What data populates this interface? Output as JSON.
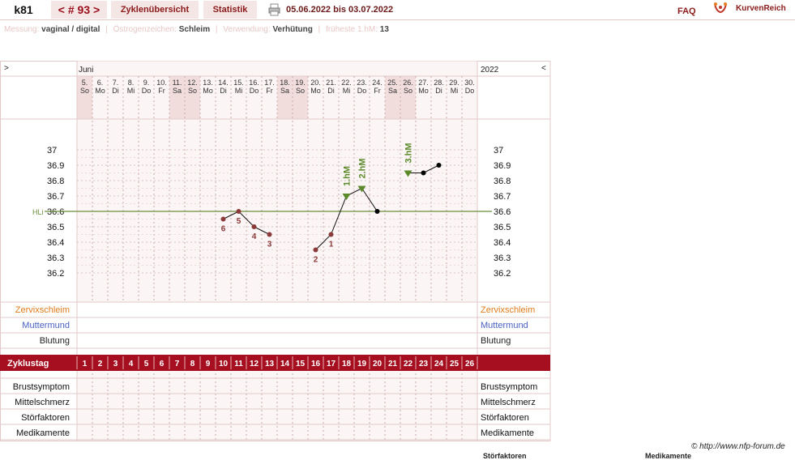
{
  "topbar": {
    "user": "k81",
    "cycle": "< # 93 >",
    "overview": "Zyklenübersicht",
    "statistics": "Statistik",
    "date_range": "05.06.2022 bis 03.07.2022",
    "faq": "FAQ",
    "logo_text": "KurvenReich",
    "icons": [
      "printer-icon",
      "logo-icon"
    ]
  },
  "info": {
    "measurement_label": "Messung:",
    "measurement_value": "vaginal / digital",
    "estrogen_label": "Östrogenzeichen:",
    "estrogen_value": "Schleim",
    "usage_label": "Verwendung:",
    "usage_value": "Verhütung",
    "earliest_label": "früheste 1.hM:",
    "earliest_value": "13"
  },
  "nav": {
    "left": ">",
    "right": "<"
  },
  "chart_data": {
    "type": "line",
    "month_label": "Juni",
    "year_label": "2022",
    "x": [
      "5.",
      "6.",
      "7.",
      "8.",
      "9.",
      "10.",
      "11.",
      "12.",
      "13.",
      "14.",
      "15.",
      "16.",
      "17.",
      "18.",
      "19.",
      "20.",
      "21.",
      "22.",
      "23.",
      "24.",
      "25.",
      "26.",
      "27.",
      "28.",
      "29.",
      "30."
    ],
    "weekdays": [
      "So",
      "Mo",
      "Di",
      "Mi",
      "Do",
      "Fr",
      "Sa",
      "So",
      "Mo",
      "Di",
      "Mi",
      "Do",
      "Fr",
      "Sa",
      "So",
      "Mo",
      "Di",
      "Mi",
      "Do",
      "Fr",
      "Sa",
      "So",
      "Mo",
      "Di",
      "Mi",
      "Do"
    ],
    "cycle_days": [
      "1",
      "2",
      "3",
      "4",
      "5",
      "6",
      "7",
      "8",
      "9",
      "10",
      "11",
      "12",
      "13",
      "14",
      "15",
      "16",
      "17",
      "18",
      "19",
      "20",
      "21",
      "22",
      "23",
      "24",
      "25",
      "26"
    ],
    "shaded_days": [
      1,
      7,
      8,
      14,
      15,
      21,
      22
    ],
    "y_ticks": [
      "37",
      "36.9",
      "36.8",
      "36.7",
      "36.6",
      "36.5",
      "36.4",
      "36.3",
      "36.2"
    ],
    "ylim": [
      36.2,
      37.0
    ],
    "hili_label": "HLi",
    "hili_value": 36.6,
    "segments": [
      [
        {
          "day": 10,
          "temp": 36.55,
          "label": "6"
        },
        {
          "day": 11,
          "temp": 36.6,
          "label": "5"
        },
        {
          "day": 12,
          "temp": 36.5,
          "label": "4"
        },
        {
          "day": 13,
          "temp": 36.45,
          "label": "3"
        }
      ],
      [
        {
          "day": 16,
          "temp": 36.35,
          "label": "2"
        },
        {
          "day": 17,
          "temp": 36.45,
          "label": "1"
        },
        {
          "day": 18,
          "temp": 36.7,
          "marker": "1.hM"
        },
        {
          "day": 19,
          "temp": 36.75,
          "marker": "2.hM"
        },
        {
          "day": 20,
          "temp": 36.6
        }
      ],
      [
        {
          "day": 22,
          "temp": 36.85,
          "marker": "3.hM"
        },
        {
          "day": 23,
          "temp": 36.85
        },
        {
          "day": 24,
          "temp": 36.9
        }
      ]
    ],
    "rows_top": [
      {
        "label": "Zervixschleim",
        "color": "#e07b1a"
      },
      {
        "label": "Muttermund",
        "color": "#4a5fbf"
      },
      {
        "label": "Blutung",
        "color": "#222222"
      }
    ],
    "cycle_row_label": "Zyklustag",
    "rows_bottom": [
      "Brustsymptom",
      "Mittelschmerz",
      "Störfaktoren",
      "Medikamente"
    ],
    "colors": {
      "accent": "#a50f1f",
      "hili": "#6b8e3a",
      "marker": "#5b8a2a",
      "low_point": "#8b3a3a",
      "high_point": "#000000"
    }
  },
  "footer": {
    "copyright": "© http://www.nfp-forum.de",
    "cut_labels": [
      "Störfaktoren",
      "Medikamente"
    ]
  }
}
